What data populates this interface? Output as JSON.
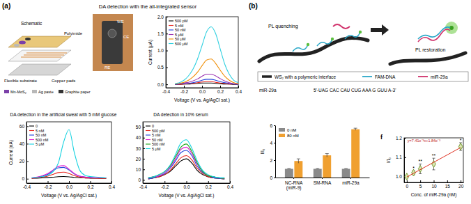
{
  "panels": {
    "a": {
      "label": "(a)",
      "heading": "DA detection with the all-integrated sensor",
      "schematic": {
        "title": "Schematic",
        "callouts": [
          "Polyimide",
          "Flexible substrate",
          "Copper pads"
        ],
        "legend": [
          {
            "name": "Mn-MoS₂",
            "color": "#7b3fa8"
          },
          {
            "name": "Ag paste",
            "color": "#b8b8b8"
          },
          {
            "name": "Graphite paper",
            "color": "#333333"
          }
        ]
      },
      "photo_labels": [
        "WE",
        "CE",
        "RE"
      ]
    },
    "b": {
      "label": "(b)",
      "left_label": "PL quenching",
      "right_label": "PL restoration",
      "legend": [
        {
          "name": "WS₂ with a polymeric interface",
          "color": "#222222"
        },
        {
          "name": "FAM-DNA",
          "color": "#2aa8c8"
        },
        {
          "name": "miR-29a",
          "color": "#d0306a"
        }
      ],
      "sequence_name": "miR-29a",
      "sequence": "5'-UAG CAC CAU CUG AAA G GUU A-3'",
      "subpanel_label": "f"
    }
  },
  "chart_data": [
    {
      "type": "line",
      "xlabel": "Voltage (V vs. Ag/AgCl sat.)",
      "ylabel": "Current (μA)",
      "x": [
        -0.3,
        -0.25,
        -0.2,
        -0.15,
        -0.1,
        -0.05,
        0,
        0.05,
        0.1,
        0.15,
        0.2,
        0.25,
        0.3,
        0.35,
        0.4
      ],
      "xlim": [
        -0.4,
        0.4
      ],
      "xticks": [
        -0.4,
        -0.2,
        {
          "value": 0,
          "label": "0.0"
        },
        0.2,
        0.4
      ],
      "ylim": [
        -0.1,
        2.0
      ],
      "yticks": [
        {
          "value": 0,
          "label": "0.0"
        },
        0.5,
        {
          "value": 1,
          "label": "1.0"
        },
        1.5,
        {
          "value": 2,
          "label": "2.0"
        }
      ],
      "legend": "upper left",
      "series": [
        {
          "name": "500 pM",
          "color": "#000000",
          "values": [
            0,
            0,
            0.01,
            0.01,
            0.02,
            0.03,
            0.04,
            0.04,
            0.04,
            0.03,
            0.02,
            0.01,
            0.01,
            0,
            0
          ]
        },
        {
          "name": "5 nM",
          "color": "#e8251f",
          "values": [
            0,
            0,
            0.01,
            0.02,
            0.03,
            0.05,
            0.07,
            0.08,
            0.08,
            0.06,
            0.04,
            0.03,
            0.01,
            0.01,
            0
          ]
        },
        {
          "name": "50 nM",
          "color": "#1f3fdc",
          "values": [
            0,
            0.01,
            0.02,
            0.03,
            0.05,
            0.08,
            0.12,
            0.15,
            0.15,
            0.12,
            0.08,
            0.05,
            0.03,
            0.01,
            0
          ]
        },
        {
          "name": "5 μM",
          "color": "#9a2fb0",
          "values": [
            0.01,
            0.02,
            0.04,
            0.06,
            0.1,
            0.16,
            0.24,
            0.3,
            0.3,
            0.25,
            0.17,
            0.1,
            0.05,
            0.02,
            0.01
          ]
        },
        {
          "name": "50 μM",
          "color": "#f08c00",
          "values": [
            0.01,
            0.03,
            0.06,
            0.12,
            0.22,
            0.36,
            0.55,
            0.72,
            0.75,
            0.62,
            0.42,
            0.24,
            0.12,
            0.05,
            0.02
          ]
        },
        {
          "name": "500 μM",
          "color": "#30d0e0",
          "values": [
            0.02,
            0.05,
            0.12,
            0.25,
            0.45,
            0.75,
            1.15,
            1.55,
            1.7,
            1.5,
            1.05,
            0.6,
            0.3,
            0.12,
            0.05
          ]
        }
      ]
    },
    {
      "type": "line",
      "title": "DA detection in the artificial sweat with 5 mM glucose",
      "xlabel": "Voltage (V vs. Ag/AgCl sat.)",
      "ylabel": "Current (nA)",
      "x": [
        -0.35,
        -0.3,
        -0.25,
        -0.2,
        -0.15,
        -0.1,
        -0.05,
        0,
        0.05,
        0.1,
        0.15,
        0.2,
        0.25,
        0.3,
        0.35
      ],
      "xlim": [
        -0.4,
        0.4
      ],
      "xticks": [
        -0.4,
        -0.2,
        {
          "value": 0,
          "label": "0.0"
        },
        0.2,
        0.4
      ],
      "ylim": [
        -5,
        65
      ],
      "yticks": [
        0,
        20,
        40,
        60
      ],
      "legend": "upper left",
      "series": [
        {
          "name": "0",
          "color": "#000000",
          "values": [
            0.5,
            0.7,
            1,
            1.3,
            1.8,
            2.3,
            2.5,
            2.2,
            1.6,
            1.2,
            0.9,
            0.7,
            0.6,
            0.5,
            0.5
          ]
        },
        {
          "name": "5 nM",
          "color": "#e8251f",
          "values": [
            0.5,
            1,
            2,
            3,
            5,
            7,
            7.5,
            6,
            3.5,
            2,
            1,
            0.8,
            0.6,
            0.5,
            0.5
          ]
        },
        {
          "name": "50 nM",
          "color": "#1f3fdc",
          "values": [
            1,
            1.5,
            3,
            5,
            9,
            12.5,
            13,
            10,
            5.5,
            3,
            2,
            1.5,
            1,
            1,
            1
          ]
        },
        {
          "name": "500 nM",
          "color": "#e020d0",
          "values": [
            1,
            2,
            3.5,
            6,
            10,
            14,
            15,
            11,
            6,
            3,
            2,
            1.5,
            1,
            1,
            1
          ]
        },
        {
          "name": "5 μM",
          "color": "#14d2e0",
          "values": [
            1,
            1.5,
            2.5,
            4,
            8,
            18,
            42,
            56,
            30,
            10,
            4,
            2.5,
            2,
            1.5,
            1
          ]
        }
      ]
    },
    {
      "type": "line",
      "title": "DA detection in 10% serum",
      "xlabel": "Voltage (V vs. Ag/AgCl sat.)",
      "x": [
        -0.35,
        -0.3,
        -0.25,
        -0.2,
        -0.15,
        -0.1,
        -0.05,
        0,
        0.05,
        0.1,
        0.15,
        0.2,
        0.25,
        0.3,
        0.35
      ],
      "xlim": [
        -0.4,
        0.4
      ],
      "xticks": [
        -0.4,
        -0.2,
        {
          "value": 0,
          "label": "0.0"
        },
        0.2,
        0.4
      ],
      "ylim": [
        -3,
        55
      ],
      "yticks": [
        0,
        10,
        20,
        30,
        40,
        50
      ],
      "legend": "upper left",
      "series": [
        {
          "name": "0",
          "color": "#000000",
          "values": [
            1,
            2,
            3,
            5,
            8,
            13,
            18,
            20,
            16,
            9,
            5,
            3,
            2,
            1.5,
            1
          ]
        },
        {
          "name": "500 pM",
          "color": "#e8251f",
          "values": [
            1,
            2,
            3,
            5,
            9,
            15,
            21,
            23,
            19,
            11,
            6,
            3,
            2,
            1.5,
            1
          ]
        },
        {
          "name": "5 nM",
          "color": "#1f3fdc",
          "values": [
            1,
            2,
            4,
            6,
            11,
            18,
            26,
            28,
            23,
            13,
            7,
            4,
            2,
            1.5,
            1
          ]
        },
        {
          "name": "50 nM",
          "color": "#e020d0",
          "values": [
            2,
            3,
            4,
            7,
            12,
            20,
            29,
            31,
            25,
            15,
            8,
            4,
            3,
            2,
            1.5
          ]
        },
        {
          "name": "500 nM",
          "color": "#1aa61a",
          "values": [
            2,
            3,
            5,
            8,
            13,
            22,
            31,
            34,
            27,
            16,
            8,
            4,
            3,
            2,
            1.5
          ]
        },
        {
          "name": "5 μM",
          "color": "#14d2e0",
          "values": [
            2,
            3,
            5,
            8,
            14,
            24,
            35,
            38,
            30,
            18,
            9,
            5,
            3,
            2,
            2
          ]
        }
      ]
    },
    {
      "type": "bar",
      "ylabel": "I/I₀",
      "categories": [
        "NC-RNA\n(miR-9)",
        "SM-RNA",
        "miR-29a"
      ],
      "ylim": [
        0,
        6
      ],
      "yticks": [
        0,
        2,
        4,
        6
      ],
      "legend": "upper left",
      "series": [
        {
          "name": "0 nM",
          "color": "#8a8a8a",
          "values": [
            1.0,
            1.0,
            1.0
          ],
          "errors": [
            0.03,
            0.03,
            0.03
          ]
        },
        {
          "name": "80 nM",
          "color": "#f0a030",
          "values": [
            1.9,
            2.55,
            5.55
          ],
          "errors": [
            0.25,
            0.2,
            0.12
          ]
        }
      ]
    },
    {
      "type": "scatter",
      "xlabel": "Conc. of miR-29a (nM)",
      "ylabel": "I/I₀",
      "x": [
        0,
        2.5,
        5,
        10,
        20
      ],
      "xlim": [
        -1,
        21
      ],
      "xticks": [
        0,
        5,
        10,
        15,
        20
      ],
      "ylim": [
        0.97,
        1.2
      ],
      "yticks": [
        {
          "value": 1,
          "label": "1.0"
        },
        1.1,
        1.2
      ],
      "series": [
        {
          "color": "#6b8e23",
          "marker": "diamond",
          "values": [
            1.0,
            1.02,
            1.04,
            1.065,
            1.155
          ],
          "errors": [
            0.005,
            0.01,
            0.025,
            0.03,
            0.02
          ]
        },
        {
          "type": "line",
          "color": "#e03020",
          "line_style": "solid",
          "x": [
            0,
            20
          ],
          "values": [
            0.998,
            1.15
          ]
        }
      ],
      "annotations": [
        {
          "text": "y=7.41e⁻³x+1.84e⁻³",
          "x": 0,
          "y": 1.18
        },
        {
          "text": "*",
          "x": 2.5,
          "y": 1.035
        },
        {
          "text": "**",
          "x": 5,
          "y": 1.07
        },
        {
          "text": "**",
          "x": 10,
          "y": 1.1
        },
        {
          "text": "*",
          "x": 20,
          "y": 1.18
        }
      ]
    }
  ]
}
